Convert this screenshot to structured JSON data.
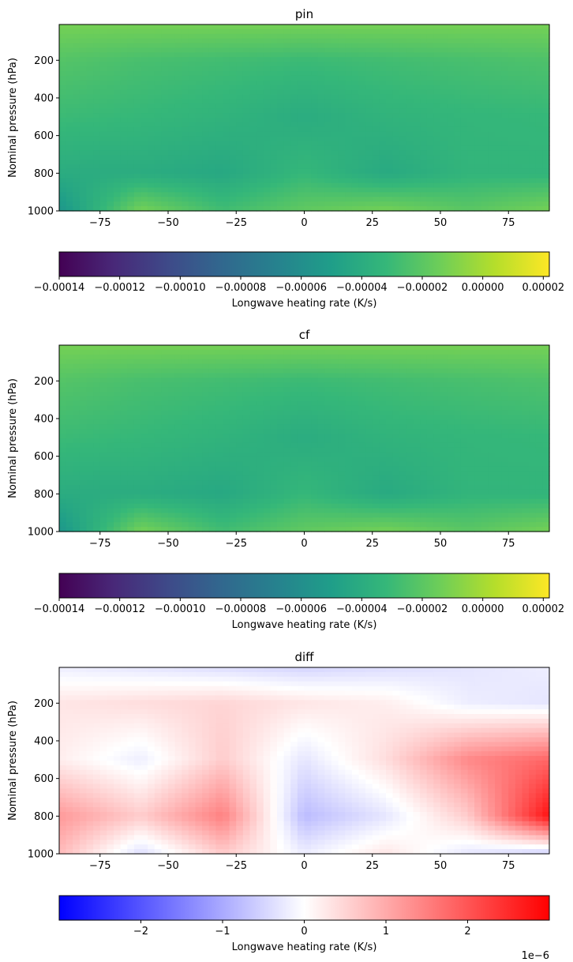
{
  "chart_data": [
    {
      "type": "heatmap",
      "title": "pin",
      "xlabel": "",
      "ylabel": "Nominal pressure (hPa)",
      "x_ticks": [
        -75,
        -50,
        -25,
        0,
        25,
        50,
        75
      ],
      "x_tick_labels": [
        "−75",
        "−50",
        "−25",
        "0",
        "25",
        "50",
        "75"
      ],
      "xlim": [
        -90,
        90
      ],
      "y_ticks": [
        200,
        400,
        600,
        800,
        1000
      ],
      "y_tick_labels": [
        "200",
        "400",
        "600",
        "800",
        "1000"
      ],
      "ylim": [
        1000,
        10
      ],
      "colormap": "viridis",
      "colorbar": {
        "label": "Longwave heating rate (K/s)",
        "range": [
          -0.00014,
          2.2e-05
        ],
        "ticks": [
          -0.00014,
          -0.00012,
          -0.0001,
          -8e-05,
          -6e-05,
          -4e-05,
          -2e-05,
          0.0,
          2e-05
        ],
        "tick_labels": [
          "−0.00014",
          "−0.00012",
          "−0.00010",
          "−0.00008",
          "−0.00006",
          "−0.00004",
          "−0.00002",
          "0.00000",
          "0.00002"
        ]
      },
      "field": {
        "lat": [
          -90,
          -60,
          -30,
          0,
          30,
          60,
          90
        ],
        "pressure": [
          10,
          200,
          500,
          800,
          1000
        ],
        "values": [
          [
            -1.2e-05,
            -1.2e-05,
            -1.2e-05,
            -1.2e-05,
            -1.2e-05,
            -1.2e-05,
            -1.2e-05
          ],
          [
            -2.2e-05,
            -2.6e-05,
            -2.8e-05,
            -3e-05,
            -2.8e-05,
            -2.6e-05,
            -2.4e-05
          ],
          [
            -3e-05,
            -3.2e-05,
            -3.5e-05,
            -4e-05,
            -3.5e-05,
            -3.3e-05,
            -3.2e-05
          ],
          [
            -4e-05,
            -4e-05,
            -4.3e-05,
            -3.2e-05,
            -4.2e-05,
            -3.4e-05,
            -3.4e-05
          ],
          [
            -5.5e-05,
            -1.2e-05,
            -2.8e-05,
            -1.8e-05,
            -1.2e-05,
            -2e-05,
            -1.2e-05
          ]
        ]
      }
    },
    {
      "type": "heatmap",
      "title": "cf",
      "xlabel": "",
      "ylabel": "Nominal pressure (hPa)",
      "x_ticks": [
        -75,
        -50,
        -25,
        0,
        25,
        50,
        75
      ],
      "x_tick_labels": [
        "−75",
        "−50",
        "−25",
        "0",
        "25",
        "50",
        "75"
      ],
      "xlim": [
        -90,
        90
      ],
      "y_ticks": [
        200,
        400,
        600,
        800,
        1000
      ],
      "y_tick_labels": [
        "200",
        "400",
        "600",
        "800",
        "1000"
      ],
      "ylim": [
        1000,
        10
      ],
      "colormap": "viridis",
      "colorbar": {
        "label": "Longwave heating rate (K/s)",
        "range": [
          -0.00014,
          2.2e-05
        ],
        "ticks": [
          -0.00014,
          -0.00012,
          -0.0001,
          -8e-05,
          -6e-05,
          -4e-05,
          -2e-05,
          0.0,
          2e-05
        ],
        "tick_labels": [
          "−0.00014",
          "−0.00012",
          "−0.00010",
          "−0.00008",
          "−0.00006",
          "−0.00004",
          "−0.00002",
          "0.00000",
          "0.00002"
        ]
      },
      "field": {
        "lat": [
          -90,
          -60,
          -30,
          0,
          30,
          60,
          90
        ],
        "pressure": [
          10,
          200,
          500,
          800,
          1000
        ],
        "values": [
          [
            -1.2e-05,
            -1.2e-05,
            -1.2e-05,
            -1.2e-05,
            -1.2e-05,
            -1.2e-05,
            -1.2e-05
          ],
          [
            -2.2e-05,
            -2.6e-05,
            -2.8e-05,
            -3e-05,
            -2.8e-05,
            -2.6e-05,
            -2.4e-05
          ],
          [
            -3e-05,
            -3.2e-05,
            -3.5e-05,
            -4e-05,
            -3.5e-05,
            -3.3e-05,
            -3.2e-05
          ],
          [
            -4e-05,
            -4e-05,
            -4.3e-05,
            -3.2e-05,
            -4.2e-05,
            -3.4e-05,
            -3.4e-05
          ],
          [
            -5.5e-05,
            -1.2e-05,
            -2.8e-05,
            -1.8e-05,
            -1.2e-05,
            -2e-05,
            -1.2e-05
          ]
        ]
      }
    },
    {
      "type": "heatmap",
      "title": "diff",
      "xlabel": "",
      "ylabel": "Nominal pressure (hPa)",
      "x_ticks": [
        -75,
        -50,
        -25,
        0,
        25,
        50,
        75
      ],
      "x_tick_labels": [
        "−75",
        "−50",
        "−25",
        "0",
        "25",
        "50",
        "75"
      ],
      "xlim": [
        -90,
        90
      ],
      "y_ticks": [
        200,
        400,
        600,
        800,
        1000
      ],
      "y_tick_labels": [
        "200",
        "400",
        "600",
        "800",
        "1000"
      ],
      "ylim": [
        1000,
        10
      ],
      "colormap": "bwr",
      "colorbar": {
        "label": "Longwave heating rate (K/s)",
        "range": [
          -3e-06,
          3e-06
        ],
        "ticks": [
          -2e-06,
          -1e-06,
          0,
          1e-06,
          2e-06
        ],
        "tick_labels": [
          "−2",
          "−1",
          "0",
          "1",
          "2"
        ],
        "offset_text": "1e−6"
      },
      "field": {
        "lat": [
          -90,
          -60,
          -30,
          0,
          30,
          60,
          90
        ],
        "pressure": [
          10,
          200,
          500,
          800,
          1000
        ],
        "values": [
          [
            -2e-07,
            -3e-07,
            -4e-07,
            -5e-07,
            -4e-07,
            -3e-07,
            -2e-07
          ],
          [
            3e-07,
            4e-07,
            5e-07,
            3e-07,
            2e-07,
            -2e-07,
            -3e-07
          ],
          [
            2e-07,
            -2e-07,
            6e-07,
            -3e-07,
            4e-07,
            1.4e-06,
            1.8e-06
          ],
          [
            1.2e-06,
            6e-07,
            1.5e-06,
            -8e-07,
            -3e-07,
            6e-07,
            2.8e-06
          ],
          [
            8e-07,
            -4e-07,
            6e-07,
            -2e-07,
            3e-07,
            -3e-07,
            -6e-07
          ]
        ]
      }
    }
  ]
}
